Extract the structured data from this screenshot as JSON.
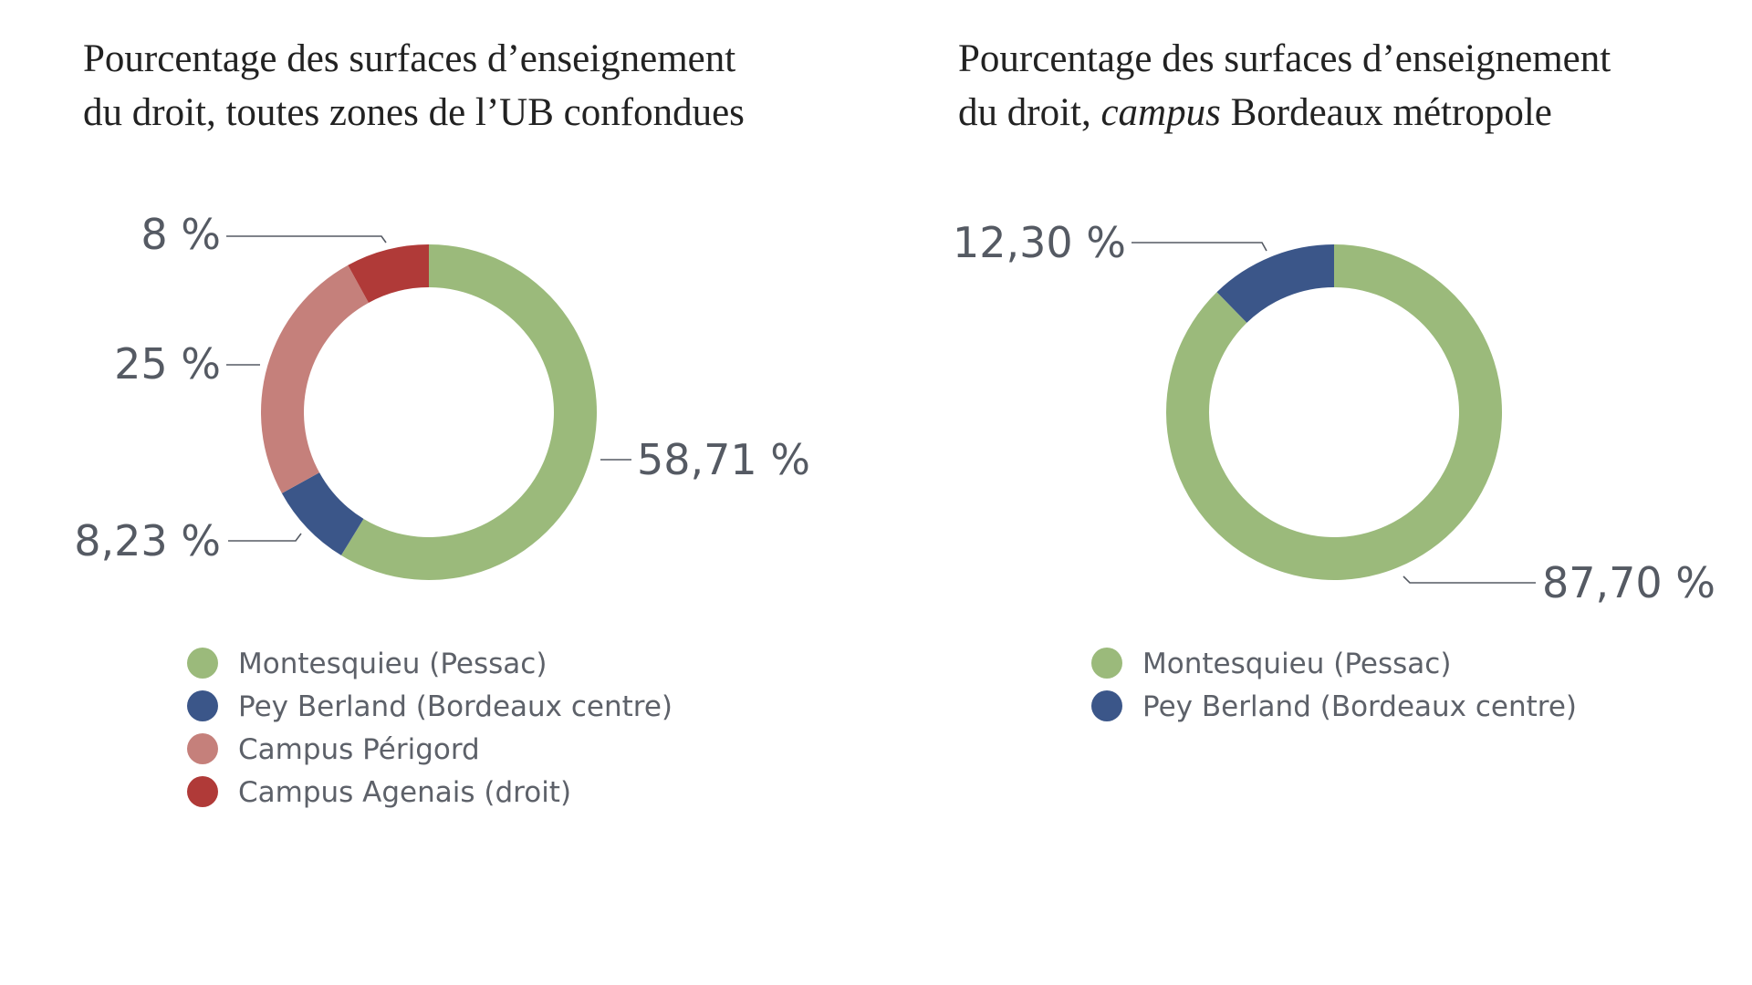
{
  "chart_data": [
    {
      "type": "pie",
      "variant": "donut",
      "title_line1": "Pourcentage des surfaces d’enseignement",
      "title_line2": "du droit, toutes zones de l’UB confondues",
      "slices": [
        {
          "label": "Montesquieu (Pessac)",
          "value": 58.71,
          "value_label": "58,71 %",
          "color": "#9bba7b"
        },
        {
          "label": "Pey Berland (Bordeaux centre)",
          "value": 8.23,
          "value_label": "8,23 %",
          "color": "#3b5689"
        },
        {
          "label": "Campus Périgord",
          "value": 25,
          "value_label": "25 %",
          "color": "#c5807b"
        },
        {
          "label": "Campus Agenais (droit)",
          "value": 8,
          "value_label": "8 %",
          "color": "#b03a38"
        }
      ],
      "legend_position": "bottom"
    },
    {
      "type": "pie",
      "variant": "donut",
      "title_line1": "Pourcentage des surfaces d’enseignement",
      "title_line2_pre": "du droit, ",
      "title_line2_emph": "campus",
      "title_line2_post": " Bordeaux métropole",
      "slices": [
        {
          "label": "Montesquieu (Pessac)",
          "value": 87.7,
          "value_label": "87,70 %",
          "color": "#9bba7b"
        },
        {
          "label": "Pey Berland (Bordeaux centre)",
          "value": 12.3,
          "value_label": "12,30 %",
          "color": "#3b5689"
        }
      ],
      "legend_position": "bottom"
    }
  ]
}
